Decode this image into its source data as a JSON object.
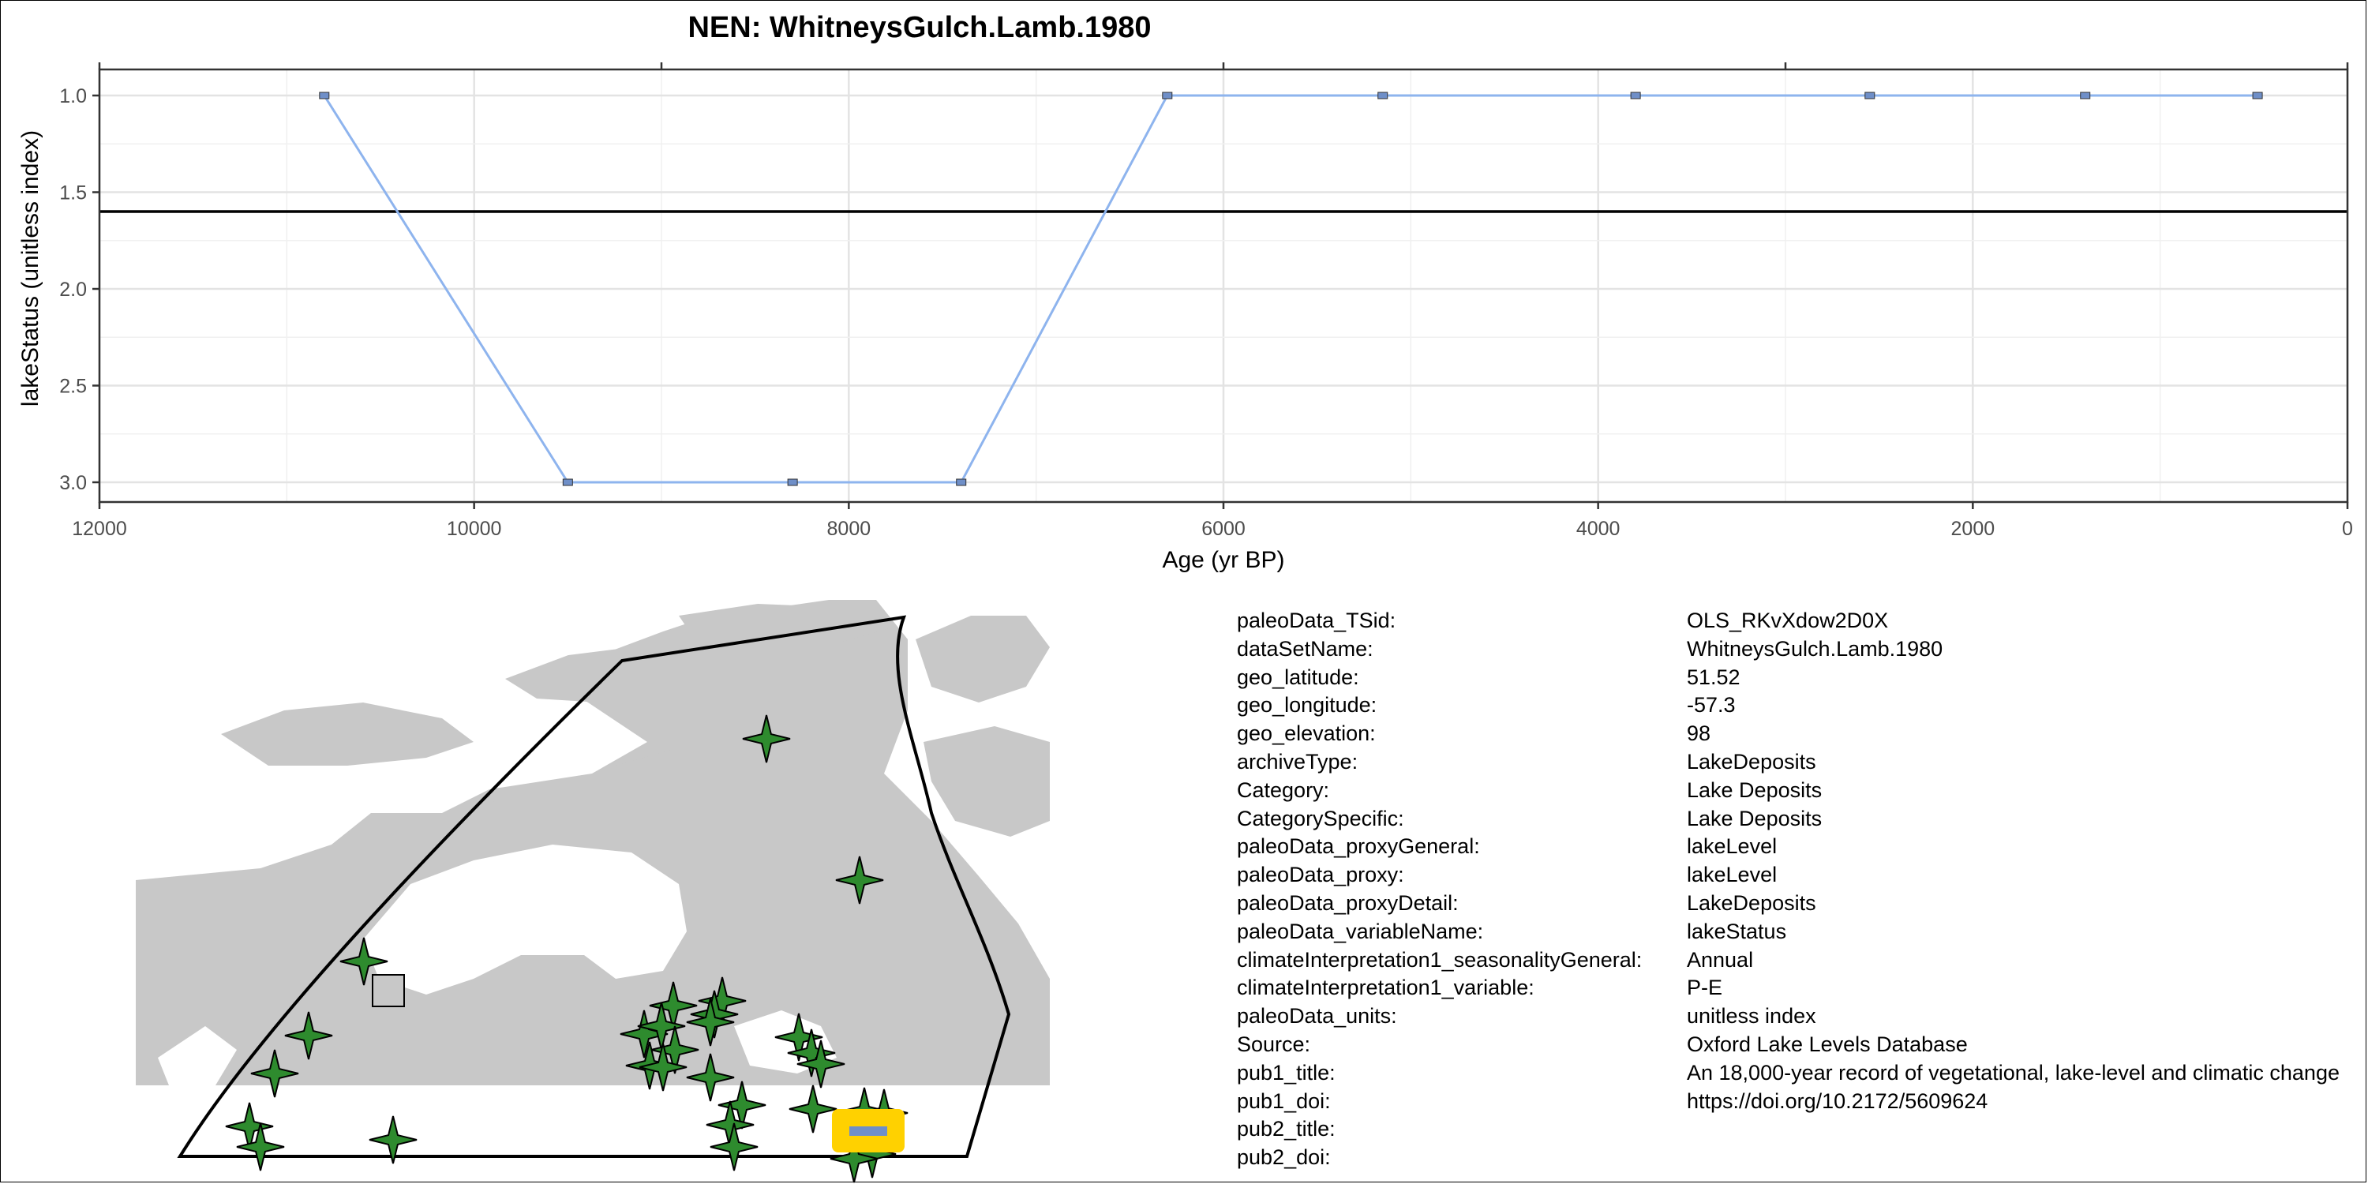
{
  "chart_data": {
    "type": "line",
    "title": "NEN: WhitneysGulch.Lamb.1980",
    "xlabel": "Age (yr BP)",
    "ylabel": "lakeStatus (unitless index)",
    "xlim": [
      12000,
      0
    ],
    "ylim": [
      3.0,
      1.0
    ],
    "x_reversed": true,
    "y_reversed": true,
    "xticks": [
      12000,
      10000,
      8000,
      6000,
      4000,
      2000,
      0
    ],
    "xtick_labels": [
      "12000",
      "10000",
      "8000",
      "6000",
      "4000",
      "2000",
      "0"
    ],
    "yticks": [
      1.0,
      1.5,
      2.0,
      2.5,
      3.0
    ],
    "ytick_labels": [
      "1.0",
      "1.5",
      "2.0",
      "2.5",
      "3.0"
    ],
    "grid": true,
    "series": [
      {
        "x": [
          10800,
          9500,
          8300,
          7400,
          6300,
          5150,
          3800,
          2550,
          1400,
          480
        ],
        "y": [
          1,
          3,
          3,
          3,
          1,
          1,
          1,
          1,
          1,
          1
        ],
        "color": "#8EB4EE",
        "marker_color": "#6F8FC8"
      }
    ],
    "reference_line": {
      "y": 1.6,
      "color": "#000000"
    }
  },
  "map": {
    "land_color": "#C8C8C8",
    "site_marker_color": "#2E8B2E",
    "highlight_color": "#FFD100"
  },
  "metadata": [
    {
      "key": "paleoData_TSid:",
      "value": "OLS_RKvXdow2D0X"
    },
    {
      "key": "dataSetName:",
      "value": "WhitneysGulch.Lamb.1980"
    },
    {
      "key": "geo_latitude:",
      "value": "51.52"
    },
    {
      "key": "geo_longitude:",
      "value": "-57.3"
    },
    {
      "key": "geo_elevation:",
      "value": "98"
    },
    {
      "key": "archiveType:",
      "value": "LakeDeposits"
    },
    {
      "key": "Category:",
      "value": "Lake Deposits"
    },
    {
      "key": "CategorySpecific:",
      "value": "Lake Deposits"
    },
    {
      "key": "paleoData_proxyGeneral:",
      "value": "lakeLevel"
    },
    {
      "key": "paleoData_proxy:",
      "value": "lakeLevel"
    },
    {
      "key": "paleoData_proxyDetail:",
      "value": "LakeDeposits"
    },
    {
      "key": "paleoData_variableName:",
      "value": "lakeStatus"
    },
    {
      "key": "climateInterpretation1_seasonalityGeneral:",
      "value": "Annual"
    },
    {
      "key": "climateInterpretation1_variable:",
      "value": "P-E"
    },
    {
      "key": "paleoData_units:",
      "value": "unitless index"
    },
    {
      "key": "Source:",
      "value": "Oxford Lake Levels Database"
    },
    {
      "key": "pub1_title:",
      "value": "An 18,000-year record of vegetational, lake-level and climatic change"
    },
    {
      "key": "pub1_doi:",
      "value": "https://doi.org/10.2172/5609624"
    },
    {
      "key": "pub2_title:",
      "value": ""
    },
    {
      "key": "pub2_doi:",
      "value": ""
    }
  ]
}
